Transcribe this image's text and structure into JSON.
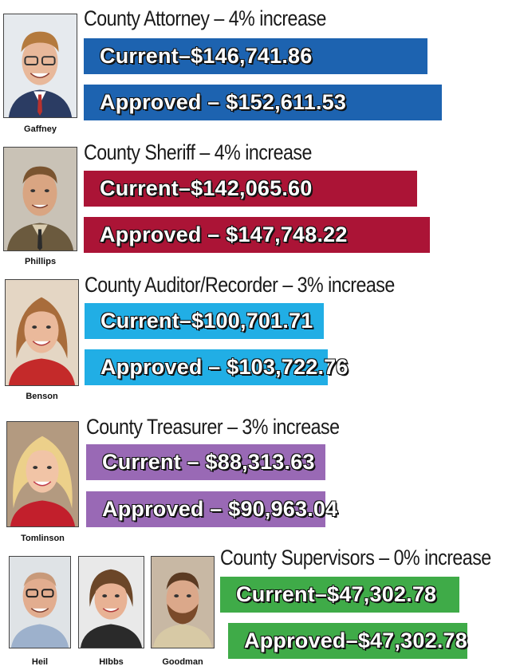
{
  "chart_data": {
    "type": "bar",
    "unit": "$",
    "groups": [
      {
        "title": "County Attorney – 4% increase",
        "names": [
          "Gaffney"
        ],
        "color": "#1d63b0",
        "current_label": "Current–$146,741.86",
        "approved_label": "Approved – $152,611.53",
        "current": 146741.86,
        "approved": 152611.53
      },
      {
        "title": "County Sheriff – 4% increase",
        "names": [
          "Phillips"
        ],
        "color": "#ab1436",
        "current_label": "Current–$142,065.60",
        "approved_label": "Approved – $147,748.22",
        "current": 142065.6,
        "approved": 147748.22
      },
      {
        "title": "County Auditor/Recorder – 3% increase",
        "names": [
          "Benson"
        ],
        "color": "#21aee5",
        "current_label": "Current–$100,701.71",
        "approved_label": "Approved – $103,722.76",
        "current": 100701.71,
        "approved": 103722.76
      },
      {
        "title": "County Treasurer – 3% increase",
        "names": [
          "Tomlinson"
        ],
        "color": "#9969b5",
        "current_label": "Current – $88,313.63",
        "approved_label": "Approved – $90,963.04",
        "current": 88313.63,
        "approved": 90963.04
      },
      {
        "title": "County Supervisors – 0% increase",
        "names": [
          "Heil",
          "HIbbs",
          "Goodman"
        ],
        "color": "#3fab48",
        "current_label": "Current–$47,302.78",
        "approved_label": "Approved–$47,302.78",
        "current": 47302.78,
        "approved": 47302.78
      }
    ]
  }
}
